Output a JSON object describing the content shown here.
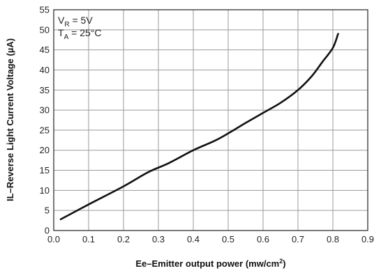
{
  "chart_data": {
    "type": "line",
    "title": "",
    "xlabel": {
      "main": "Ee–Emitter output power (mw/cm",
      "sup": "2",
      "end": ")"
    },
    "ylabel": "IL–Reverse Light Current Voltage (µA)",
    "xlim": [
      0.0,
      0.9
    ],
    "ylim": [
      0,
      55
    ],
    "xticks": [
      "0.0",
      "0.1",
      "0.2",
      "0.3",
      "0.4",
      "0.5",
      "0.6",
      "0.7",
      "0.8",
      "0.9"
    ],
    "yticks": [
      "0",
      "5",
      "10",
      "15",
      "20",
      "25",
      "30",
      "35",
      "40",
      "45",
      "50",
      "55"
    ],
    "grid": true,
    "annotations": [
      {
        "main": "V",
        "sub": "R",
        "rest": " = 5V"
      },
      {
        "main": "T",
        "sub": "A",
        "rest": " = 25°C"
      }
    ],
    "series": [
      {
        "x": [
          0.02,
          0.1,
          0.2,
          0.27,
          0.33,
          0.4,
          0.46,
          0.5,
          0.55,
          0.6,
          0.65,
          0.7,
          0.74,
          0.77,
          0.8,
          0.815
        ],
        "y": [
          2.8,
          6.5,
          11.0,
          14.5,
          16.8,
          20.0,
          22.3,
          24.2,
          26.8,
          29.3,
          31.8,
          35.0,
          38.5,
          42.0,
          45.5,
          49.0
        ]
      }
    ]
  }
}
